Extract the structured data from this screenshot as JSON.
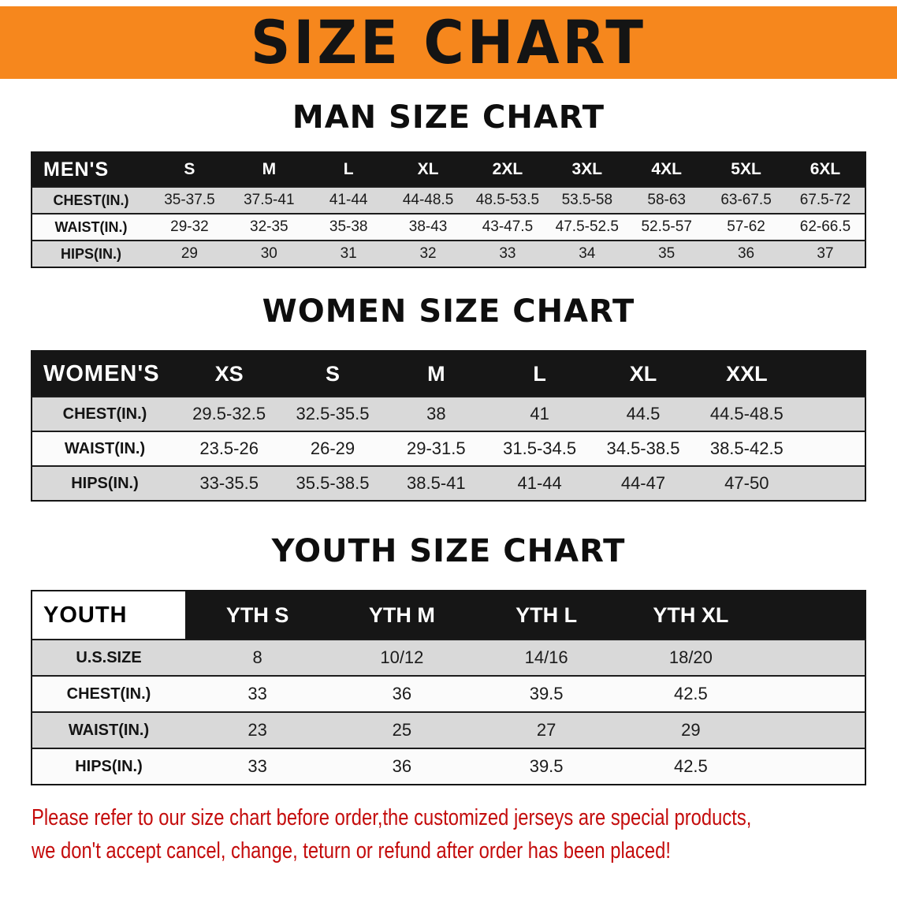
{
  "banner": {
    "title": "SIZE CHART"
  },
  "colors": {
    "banner_bg": "#F6871D",
    "table_header_bg": "#161616",
    "row_stripe_gray": "#D9D9D9",
    "notice_red": "#C40B0B"
  },
  "sections": {
    "men": {
      "heading": "MAN SIZE CHART",
      "table": {
        "header_label": "MEN'S",
        "columns": [
          "S",
          "M",
          "L",
          "XL",
          "2XL",
          "3XL",
          "4XL",
          "5XL",
          "6XL"
        ],
        "rows": [
          {
            "label": "CHEST(IN.)",
            "values": [
              "35-37.5",
              "37.5-41",
              "41-44",
              "44-48.5",
              "48.5-53.5",
              "53.5-58",
              "58-63",
              "63-67.5",
              "67.5-72"
            ]
          },
          {
            "label": "WAIST(IN.)",
            "values": [
              "29-32",
              "32-35",
              "35-38",
              "38-43",
              "43-47.5",
              "47.5-52.5",
              "52.5-57",
              "57-62",
              "62-66.5"
            ]
          },
          {
            "label": "HIPS(IN.)",
            "values": [
              "29",
              "30",
              "31",
              "32",
              "33",
              "34",
              "35",
              "36",
              "37"
            ]
          }
        ]
      }
    },
    "women": {
      "heading": "WOMEN SIZE CHART",
      "table": {
        "header_label": "WOMEN'S",
        "columns": [
          "XS",
          "S",
          "M",
          "L",
          "XL",
          "XXL"
        ],
        "rows": [
          {
            "label": "CHEST(IN.)",
            "values": [
              "29.5-32.5",
              "32.5-35.5",
              "38",
              "41",
              "44.5",
              "44.5-48.5"
            ]
          },
          {
            "label": "WAIST(IN.)",
            "values": [
              "23.5-26",
              "26-29",
              "29-31.5",
              "31.5-34.5",
              "34.5-38.5",
              "38.5-42.5"
            ]
          },
          {
            "label": "HIPS(IN.)",
            "values": [
              "33-35.5",
              "35.5-38.5",
              "38.5-41",
              "41-44",
              "44-47",
              "47-50"
            ]
          }
        ]
      }
    },
    "youth": {
      "heading": "YOUTH SIZE CHART",
      "table": {
        "header_label": "YOUTH",
        "columns": [
          "YTH S",
          "YTH M",
          "YTH L",
          "YTH XL"
        ],
        "rows": [
          {
            "label": "U.S.SIZE",
            "values": [
              "8",
              "10/12",
              "14/16",
              "18/20"
            ]
          },
          {
            "label": "CHEST(IN.)",
            "values": [
              "33",
              "36",
              "39.5",
              "42.5"
            ]
          },
          {
            "label": "WAIST(IN.)",
            "values": [
              "23",
              "25",
              "27",
              "29"
            ]
          },
          {
            "label": "HIPS(IN.)",
            "values": [
              "33",
              "36",
              "39.5",
              "42.5"
            ]
          }
        ]
      }
    }
  },
  "notice": {
    "line1": "Please refer to our size chart before order,the customized jerseys are special products,",
    "line2": "we don't accept cancel, change, teturn or refund after order has been placed!"
  }
}
